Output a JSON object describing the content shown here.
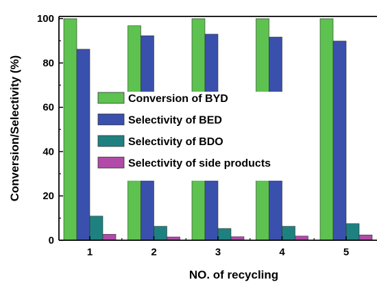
{
  "chart_data": {
    "type": "bar",
    "xlabel": "NO. of recycling",
    "ylabel": "Conversion/Selectivity (%)",
    "categories": [
      "1",
      "2",
      "3",
      "4",
      "5"
    ],
    "ylim": [
      0,
      101
    ],
    "yticks": [
      0,
      20,
      40,
      60,
      80,
      100
    ],
    "grid": false,
    "legend_position": "center-left",
    "series": [
      {
        "name": "Conversion of BYD",
        "color": "#5dc24f",
        "values": [
          100,
          96.8,
          100,
          100,
          100
        ]
      },
      {
        "name": "Selectivity of BED",
        "color": "#3a50ad",
        "values": [
          86.2,
          92.3,
          93.0,
          91.7,
          89.9
        ]
      },
      {
        "name": "Selectivity of BDO",
        "color": "#1f8080",
        "values": [
          10.9,
          6.3,
          5.3,
          6.3,
          7.5
        ]
      },
      {
        "name": "Selectivity of side products",
        "color": "#b14aa8",
        "values": [
          2.7,
          1.5,
          1.6,
          1.9,
          2.4
        ]
      }
    ]
  }
}
